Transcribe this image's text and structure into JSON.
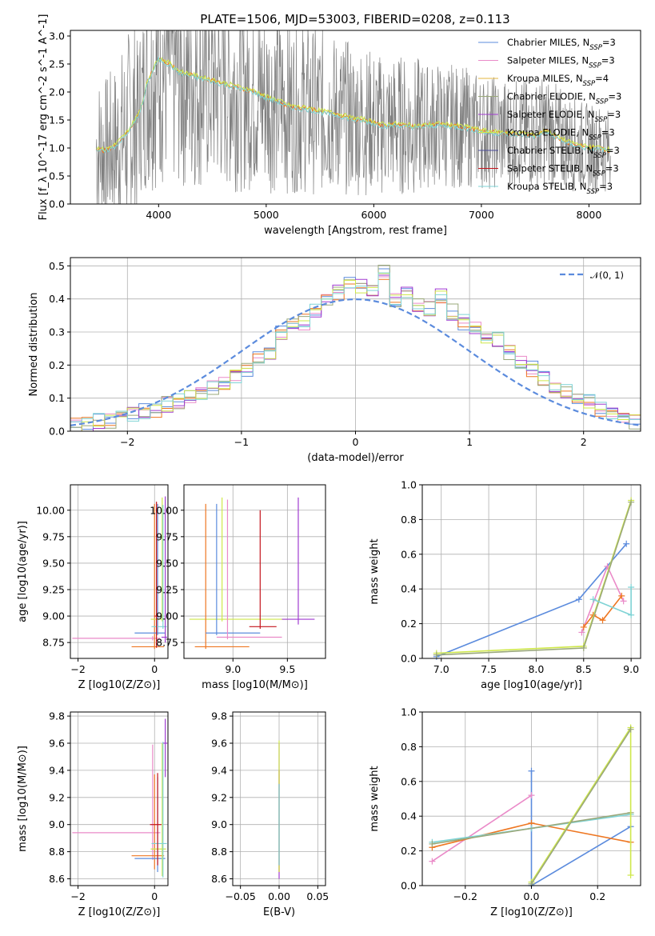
{
  "page": {
    "title": "PLATE=1506, MJD=53003, FIBERID=0208, z=0.113"
  },
  "colors": {
    "chabrier_miles": "#5b8bdd",
    "salpeter_miles": "#ea8ac8",
    "kroupa_miles": "#e3b43f",
    "chabrier_elodie": "#9aa87a",
    "salpeter_elodie": "#a03bd0",
    "kroupa_elodie": "#cfe84a",
    "chabrier_stelib": "#4b4b9a",
    "salpeter_stelib": "#c4141c",
    "kroupa_stelib": "#7fd3d5",
    "orange_track": "#ee7722",
    "data_gray": "#808080",
    "gaussian": "#5b8bdd",
    "grid": "#b0b0b0"
  },
  "chart_data": [
    {
      "id": "spectrum",
      "type": "line",
      "title": "PLATE=1506, MJD=53003, FIBERID=0208, z=0.113",
      "xlabel": "wavelength [Angstrom, rest frame]",
      "ylabel": "Flux [f_λ 10^-17 erg cm^-2 s^-1 A^-1]",
      "xlim": [
        3180,
        8480
      ],
      "ylim": [
        0,
        3.1
      ],
      "xticks": [
        4000,
        5000,
        6000,
        7000,
        8000
      ],
      "yticks": [
        "0.0",
        "0.5",
        "1.0",
        "1.5",
        "2.0",
        "2.5",
        "3.0"
      ],
      "grid": false,
      "legend_position": "top-right",
      "legend": [
        {
          "label": "Chabrier MILES, N",
          "sub": "SSP",
          "suffix": "=3",
          "color_key": "chabrier_miles"
        },
        {
          "label": "Salpeter MILES, N",
          "sub": "SSP",
          "suffix": "=3",
          "color_key": "salpeter_miles"
        },
        {
          "label": "Kroupa MILES, N",
          "sub": "SSP",
          "suffix": "=4",
          "color_key": "kroupa_miles"
        },
        {
          "label": "Chabrier ELODIE, N",
          "sub": "SSP",
          "suffix": "=3",
          "color_key": "chabrier_elodie"
        },
        {
          "label": "Salpeter ELODIE, N",
          "sub": "SSP",
          "suffix": "=3",
          "color_key": "salpeter_elodie"
        },
        {
          "label": "Kroupa ELODIE, N",
          "sub": "SSP",
          "suffix": "=3",
          "color_key": "kroupa_elodie"
        },
        {
          "label": "Chabrier STELIB, N",
          "sub": "SSP",
          "suffix": "=3",
          "color_key": "chabrier_stelib"
        },
        {
          "label": "Salpeter STELIB, N",
          "sub": "SSP",
          "suffix": "=3",
          "color_key": "salpeter_stelib"
        },
        {
          "label": "Kroupa STELIB, N",
          "sub": "SSP",
          "suffix": "=3",
          "color_key": "kroupa_stelib"
        }
      ],
      "model_continuum": {
        "x": [
          3400,
          3500,
          3600,
          3700,
          3800,
          3850,
          3900,
          3950,
          4000,
          4100,
          4200,
          4300,
          4400,
          4500,
          4600,
          4700,
          4800,
          4900,
          5000,
          5100,
          5200,
          5300,
          5400,
          5500,
          5600,
          5700,
          5800,
          5900,
          6000,
          6100,
          6200,
          6300,
          6400,
          6500,
          6600,
          6700,
          6800,
          6900,
          7000,
          7100,
          7200,
          7300,
          7400,
          7500,
          7600,
          7700,
          7800,
          7900,
          8000,
          8100,
          8200
        ],
        "y": [
          1.0,
          0.95,
          1.05,
          1.25,
          1.55,
          1.8,
          2.2,
          2.4,
          2.6,
          2.5,
          2.35,
          2.3,
          2.25,
          2.2,
          2.15,
          2.1,
          2.05,
          2.0,
          1.9,
          1.85,
          1.75,
          1.72,
          1.7,
          1.65,
          1.62,
          1.58,
          1.52,
          1.5,
          1.45,
          1.4,
          1.42,
          1.4,
          1.38,
          1.4,
          1.42,
          1.4,
          1.38,
          1.35,
          1.3,
          1.28,
          1.27,
          1.25,
          1.25,
          1.22,
          1.3,
          1.2,
          1.1,
          1.05,
          1.0,
          1.0,
          0.95
        ]
      }
    },
    {
      "id": "residuals",
      "type": "line",
      "xlabel": "(data-model)/error",
      "ylabel": "Normed distribution",
      "xlim": [
        -2.5,
        2.5
      ],
      "ylim": [
        0,
        0.525
      ],
      "xticks": [
        "−2",
        "−1",
        "0",
        "1",
        "2"
      ],
      "yticks": [
        "0.0",
        "0.1",
        "0.2",
        "0.3",
        "0.4",
        "0.5"
      ],
      "grid": true,
      "legend_position": "top-right",
      "legend": [
        {
          "label": "𝒩(0, 1)",
          "color_key": "gaussian",
          "style": "dashed"
        }
      ],
      "bin_width": 0.1,
      "histogram_approx": [
        0.02,
        0.02,
        0.03,
        0.03,
        0.04,
        0.05,
        0.06,
        0.06,
        0.08,
        0.09,
        0.1,
        0.11,
        0.13,
        0.14,
        0.17,
        0.19,
        0.22,
        0.24,
        0.3,
        0.33,
        0.33,
        0.36,
        0.39,
        0.42,
        0.45,
        0.44,
        0.42,
        0.48,
        0.4,
        0.42,
        0.38,
        0.37,
        0.41,
        0.36,
        0.33,
        0.32,
        0.29,
        0.28,
        0.24,
        0.21,
        0.19,
        0.16,
        0.14,
        0.12,
        0.1,
        0.09,
        0.07,
        0.06,
        0.04,
        0.03
      ]
    },
    {
      "id": "age_vs_Z",
      "type": "scatter",
      "xlabel": "Z [log10(Z/Z⊙)]",
      "ylabel": "age [log10(age/yr)]",
      "xlim": [
        -2.2,
        0.35
      ],
      "ylim": [
        8.6,
        10.24
      ],
      "xticks": [
        "−2",
        "0"
      ],
      "yticks": [
        "8.75",
        "9.00",
        "9.25",
        "9.50",
        "9.75",
        "10.00"
      ],
      "grid": true,
      "points": [
        {
          "x": -0.05,
          "y": 8.79,
          "xerr": [
            2.1,
            0.2
          ],
          "yerr": [
            0.02,
            0.02
          ],
          "color_key": "salpeter_miles"
        },
        {
          "x": 0.0,
          "y": 8.71,
          "xerr": [
            0.6,
            0.25
          ],
          "yerr": [
            0.02,
            1.35
          ],
          "color_key": "orange_track"
        },
        {
          "x": 0.08,
          "y": 8.84,
          "xerr": [
            0.6,
            0.2
          ],
          "yerr": [
            0.02,
            1.22
          ],
          "color_key": "chabrier_miles"
        },
        {
          "x": 0.2,
          "y": 8.97,
          "xerr": [
            0.3,
            0.1
          ],
          "yerr": [
            0.02,
            1.15
          ],
          "color_key": "kroupa_elodie"
        },
        {
          "x": 0.22,
          "y": 8.9,
          "xerr": [
            0.3,
            0.1
          ],
          "yerr": [
            0.02,
            1.15
          ],
          "color_key": "kroupa_stelib"
        },
        {
          "x": 0.28,
          "y": 8.8,
          "xerr": [
            0.1,
            0.05
          ],
          "yerr": [
            0.05,
            1.33
          ],
          "color_key": "salpeter_elodie"
        },
        {
          "x": 0.05,
          "y": 9.0,
          "xerr": [
            0.05,
            0.05
          ],
          "yerr": [
            0.3,
            1.08
          ],
          "color_key": "salpeter_stelib"
        }
      ]
    },
    {
      "id": "age_vs_mass",
      "type": "scatter",
      "xlabel": "mass [log10(M/M⊙)]",
      "ylabel": "",
      "xlim": [
        8.55,
        9.85
      ],
      "ylim": [
        8.6,
        10.24
      ],
      "xticks": [
        "9.0",
        "9.5"
      ],
      "yticks": [
        "8.75",
        "9.00",
        "9.25",
        "9.50",
        "9.75",
        "10.00"
      ],
      "grid": true,
      "points": [
        {
          "x": 8.9,
          "y": 8.97,
          "xerr": [
            0.3,
            0.6
          ],
          "yerr": [
            0.02,
            1.15
          ],
          "color_key": "kroupa_elodie"
        },
        {
          "x": 8.75,
          "y": 8.71,
          "xerr": [
            0.1,
            0.4
          ],
          "yerr": [
            0.02,
            1.35
          ],
          "color_key": "orange_track"
        },
        {
          "x": 8.85,
          "y": 8.84,
          "xerr": [
            0.1,
            0.4
          ],
          "yerr": [
            0.02,
            1.22
          ],
          "color_key": "chabrier_miles"
        },
        {
          "x": 8.95,
          "y": 8.8,
          "xerr": [
            0.1,
            0.5
          ],
          "yerr": [
            0.02,
            1.3
          ],
          "color_key": "salpeter_miles"
        },
        {
          "x": 9.6,
          "y": 8.97,
          "xerr": [
            0.15,
            0.15
          ],
          "yerr": [
            0.05,
            1.15
          ],
          "color_key": "salpeter_elodie"
        },
        {
          "x": 9.25,
          "y": 8.9,
          "xerr": [
            0.1,
            0.15
          ],
          "yerr": [
            0.02,
            1.1
          ],
          "color_key": "salpeter_stelib"
        }
      ]
    },
    {
      "id": "mass_weight_vs_age",
      "type": "line",
      "xlabel": "age [log10(age/yr)]",
      "ylabel": "mass weight",
      "xlim": [
        6.8,
        9.1
      ],
      "ylim": [
        0,
        1.0
      ],
      "xticks": [
        "7.0",
        "7.5",
        "8.0",
        "8.5",
        "9.0"
      ],
      "yticks": [
        "0.0",
        "0.2",
        "0.4",
        "0.6",
        "0.8",
        "1.0"
      ],
      "grid": true,
      "series": [
        {
          "color_key": "chabrier_miles",
          "x": [
            6.95,
            8.45,
            8.95
          ],
          "y": [
            0.01,
            0.34,
            0.66
          ]
        },
        {
          "color_key": "salpeter_miles",
          "x": [
            8.48,
            8.75,
            8.92
          ],
          "y": [
            0.15,
            0.53,
            0.33
          ]
        },
        {
          "color_key": "orange_track",
          "x": [
            8.5,
            8.6,
            8.7,
            8.9
          ],
          "y": [
            0.18,
            0.25,
            0.22,
            0.36
          ]
        },
        {
          "color_key": "kroupa_elodie",
          "x": [
            6.95,
            8.5,
            9.0
          ],
          "y": [
            0.03,
            0.07,
            0.91
          ]
        },
        {
          "color_key": "chabrier_elodie",
          "x": [
            6.95,
            8.5,
            9.0
          ],
          "y": [
            0.02,
            0.06,
            0.9
          ]
        },
        {
          "color_key": "kroupa_stelib",
          "x": [
            8.6,
            9.0,
            9.0
          ],
          "y": [
            0.34,
            0.25,
            0.41
          ]
        }
      ]
    },
    {
      "id": "mass_vs_Z",
      "type": "scatter",
      "xlabel": "Z [log10(Z/Z⊙)]",
      "ylabel": "mass [log10(M/M⊙)]",
      "xlim": [
        -2.2,
        0.35
      ],
      "ylim": [
        8.55,
        9.83
      ],
      "xticks": [
        "−2",
        "0"
      ],
      "yticks": [
        "8.6",
        "8.8",
        "9.0",
        "9.2",
        "9.4",
        "9.6",
        "9.8"
      ],
      "grid": true,
      "points": [
        {
          "x": -0.05,
          "y": 8.94,
          "xerr": [
            2.1,
            0.2
          ],
          "yerr": [
            0.2,
            0.65
          ],
          "color_key": "salpeter_miles"
        },
        {
          "x": 0.0,
          "y": 8.77,
          "xerr": [
            0.6,
            0.25
          ],
          "yerr": [
            0.1,
            0.6
          ],
          "color_key": "orange_track"
        },
        {
          "x": 0.08,
          "y": 8.75,
          "xerr": [
            0.6,
            0.2
          ],
          "yerr": [
            0.1,
            0.6
          ],
          "color_key": "chabrier_miles"
        },
        {
          "x": 0.2,
          "y": 8.82,
          "xerr": [
            0.3,
            0.1
          ],
          "yerr": [
            0.2,
            0.78
          ],
          "color_key": "kroupa_elodie"
        },
        {
          "x": 0.22,
          "y": 8.86,
          "xerr": [
            0.3,
            0.1
          ],
          "yerr": [
            0.25,
            0.75
          ],
          "color_key": "kroupa_stelib"
        },
        {
          "x": 0.28,
          "y": 9.6,
          "xerr": [
            0.05,
            0.05
          ],
          "yerr": [
            0.25,
            0.18
          ],
          "color_key": "salpeter_elodie"
        },
        {
          "x": 0.08,
          "y": 9.0,
          "xerr": [
            0.2,
            0.1
          ],
          "yerr": [
            0.3,
            0.38
          ],
          "color_key": "salpeter_stelib"
        }
      ]
    },
    {
      "id": "mass_vs_ebv",
      "type": "scatter",
      "xlabel": "E(B-V)",
      "ylabel": "",
      "xlim": [
        -0.06,
        0.06
      ],
      "ylim": [
        8.55,
        9.83
      ],
      "xticks": [
        "−0.05",
        "0.00",
        "0.05"
      ],
      "yticks": [
        "8.6",
        "8.8",
        "9.0",
        "9.2",
        "9.4",
        "9.6",
        "9.8"
      ],
      "grid": true,
      "points": [
        {
          "x": 0.0,
          "y": 8.9,
          "xerr": [
            0,
            0
          ],
          "yerr": [
            0.3,
            0.7
          ],
          "color_key": "salpeter_elodie"
        },
        {
          "x": 0.0,
          "y": 8.95,
          "xerr": [
            0,
            0
          ],
          "yerr": [
            0.3,
            0.45
          ],
          "color_key": "salpeter_stelib"
        },
        {
          "x": 0.0,
          "y": 8.9,
          "xerr": [
            0,
            0
          ],
          "yerr": [
            0.25,
            0.72
          ],
          "color_key": "kroupa_elodie"
        },
        {
          "x": 0.0,
          "y": 8.9,
          "xerr": [
            0,
            0
          ],
          "yerr": [
            0.2,
            0.4
          ],
          "color_key": "kroupa_stelib"
        }
      ]
    },
    {
      "id": "mass_weight_vs_Z",
      "type": "line",
      "xlabel": "Z [log10(Z/Z⊙)]",
      "ylabel": "mass weight",
      "xlim": [
        -0.33,
        0.33
      ],
      "ylim": [
        0,
        1.0
      ],
      "xticks": [
        "−0.2",
        "0.0",
        "0.2"
      ],
      "yticks": [
        "0.0",
        "0.2",
        "0.4",
        "0.6",
        "0.8",
        "1.0"
      ],
      "grid": true,
      "series": [
        {
          "color_key": "chabrier_miles",
          "x": [
            0.0,
            0.0,
            0.3
          ],
          "y": [
            0.66,
            0.0,
            0.34
          ]
        },
        {
          "color_key": "salpeter_miles",
          "x": [
            -0.3,
            0.0
          ],
          "y": [
            0.14,
            0.52
          ]
        },
        {
          "color_key": "orange_track",
          "x": [
            -0.3,
            0.0,
            0.3
          ],
          "y": [
            0.22,
            0.36,
            0.25
          ]
        },
        {
          "color_key": "kroupa_stelib",
          "x": [
            -0.3,
            0.0,
            0.3
          ],
          "y": [
            0.25,
            0.33,
            0.41
          ]
        },
        {
          "color_key": "chabrier_elodie",
          "x": [
            -0.3,
            0.3
          ],
          "y": [
            0.24,
            0.42
          ]
        },
        {
          "color_key": "kroupa_elodie",
          "x": [
            0.0,
            0.3,
            0.3
          ],
          "y": [
            0.02,
            0.91,
            0.06
          ]
        },
        {
          "color_key": "chabrier_elodie",
          "x": [
            0.0,
            0.3
          ],
          "y": [
            0.01,
            0.9
          ]
        }
      ]
    }
  ]
}
